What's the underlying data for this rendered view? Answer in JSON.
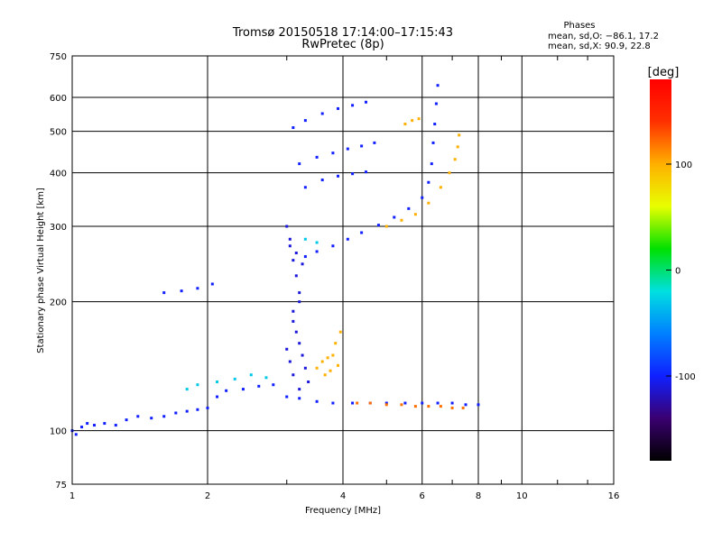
{
  "chart_data": {
    "type": "scatter",
    "title": "Tromsø 20150518 17:14:00–17:15:43",
    "subtitle": "RwPretec (8p)",
    "xlabel": "Frequency [MHz]",
    "ylabel": "Stationary phase Virtual Height [km]",
    "x_scale": "log",
    "y_scale": "log",
    "xlim": [
      1,
      16
    ],
    "ylim": [
      75,
      750
    ],
    "x_ticks": [
      1,
      2,
      4,
      6,
      8,
      10,
      16
    ],
    "y_ticks": [
      75,
      100,
      200,
      300,
      400,
      500,
      600,
      750
    ],
    "grid": true,
    "phase_info": {
      "title": "Phases",
      "line_o": "mean, sd,O: −86.1, 17.2",
      "line_x": "mean, sd,X:  90.9, 22.8"
    },
    "colorbar": {
      "label": "[deg]",
      "ticks": [
        100,
        0,
        -100
      ],
      "range": [
        -180,
        180
      ],
      "colors": [
        "#000000",
        "#3a0070",
        "#1020ff",
        "#0080ff",
        "#00e0e0",
        "#00e000",
        "#e8ff00",
        "#ffb000",
        "#ff3000",
        "#ff0000"
      ]
    },
    "series": [
      {
        "phase": -100,
        "points": [
          [
            1.0,
            100
          ],
          [
            1.02,
            98
          ],
          [
            1.05,
            102
          ],
          [
            1.08,
            104
          ],
          [
            1.12,
            103
          ],
          [
            1.18,
            104
          ],
          [
            1.25,
            103
          ],
          [
            1.32,
            106
          ],
          [
            1.4,
            108
          ],
          [
            1.5,
            107
          ],
          [
            1.6,
            108
          ],
          [
            1.7,
            110
          ],
          [
            1.8,
            111
          ],
          [
            1.9,
            112
          ],
          [
            2.0,
            113
          ],
          [
            2.1,
            120
          ],
          [
            2.2,
            124
          ],
          [
            2.4,
            125
          ],
          [
            2.6,
            127
          ],
          [
            2.8,
            128
          ],
          [
            3.0,
            120
          ],
          [
            3.2,
            119
          ],
          [
            3.5,
            117
          ],
          [
            3.8,
            116
          ],
          [
            4.2,
            116
          ],
          [
            4.6,
            116
          ],
          [
            5.0,
            116
          ],
          [
            5.5,
            116
          ],
          [
            6.0,
            116
          ],
          [
            6.5,
            116
          ],
          [
            7.0,
            116
          ],
          [
            7.5,
            115
          ],
          [
            8.0,
            115
          ]
        ]
      },
      {
        "phase": -110,
        "points": [
          [
            3.0,
            300
          ],
          [
            3.05,
            270
          ],
          [
            3.1,
            250
          ],
          [
            3.15,
            230
          ],
          [
            3.2,
            210
          ],
          [
            3.1,
            190
          ],
          [
            3.15,
            170
          ],
          [
            3.2,
            160
          ],
          [
            3.25,
            150
          ],
          [
            3.3,
            140
          ],
          [
            3.35,
            130
          ],
          [
            3.2,
            125
          ],
          [
            3.1,
            135
          ],
          [
            3.05,
            145
          ],
          [
            3.0,
            155
          ],
          [
            3.1,
            180
          ],
          [
            3.2,
            200
          ],
          [
            3.05,
            280
          ],
          [
            3.15,
            260
          ],
          [
            3.25,
            245
          ]
        ]
      },
      {
        "phase": -100,
        "points": [
          [
            3.3,
            255
          ],
          [
            3.5,
            262
          ],
          [
            3.8,
            270
          ],
          [
            4.1,
            280
          ],
          [
            4.4,
            290
          ],
          [
            4.8,
            302
          ],
          [
            5.2,
            315
          ],
          [
            5.6,
            330
          ],
          [
            6.0,
            350
          ],
          [
            6.2,
            380
          ],
          [
            6.3,
            420
          ],
          [
            6.35,
            470
          ],
          [
            6.4,
            520
          ],
          [
            6.45,
            580
          ],
          [
            6.5,
            640
          ]
        ]
      },
      {
        "phase": -100,
        "points": [
          [
            3.1,
            510
          ],
          [
            3.3,
            530
          ],
          [
            3.6,
            550
          ],
          [
            3.9,
            565
          ],
          [
            4.2,
            575
          ],
          [
            4.5,
            585
          ]
        ]
      },
      {
        "phase": -100,
        "points": [
          [
            3.2,
            420
          ],
          [
            3.5,
            435
          ],
          [
            3.8,
            445
          ],
          [
            4.1,
            455
          ],
          [
            4.4,
            462
          ],
          [
            4.7,
            470
          ]
        ]
      },
      {
        "phase": -100,
        "points": [
          [
            3.3,
            370
          ],
          [
            3.6,
            385
          ],
          [
            3.9,
            393
          ],
          [
            4.2,
            398
          ],
          [
            4.5,
            402
          ]
        ]
      },
      {
        "phase": -100,
        "points": [
          [
            1.6,
            210
          ],
          [
            1.75,
            212
          ],
          [
            1.9,
            215
          ],
          [
            2.05,
            220
          ]
        ]
      },
      {
        "phase": 100,
        "points": [
          [
            5.0,
            300
          ],
          [
            5.4,
            310
          ],
          [
            5.8,
            320
          ],
          [
            6.2,
            340
          ],
          [
            6.6,
            370
          ],
          [
            6.9,
            400
          ],
          [
            7.1,
            430
          ],
          [
            7.2,
            460
          ],
          [
            7.25,
            490
          ]
        ]
      },
      {
        "phase": 100,
        "points": [
          [
            3.5,
            140
          ],
          [
            3.6,
            145
          ],
          [
            3.7,
            148
          ],
          [
            3.8,
            150
          ],
          [
            3.9,
            142
          ],
          [
            3.75,
            138
          ],
          [
            3.65,
            135
          ],
          [
            3.85,
            160
          ],
          [
            3.95,
            170
          ]
        ]
      },
      {
        "phase": 120,
        "points": [
          [
            4.3,
            116
          ],
          [
            4.6,
            116
          ],
          [
            5.0,
            115
          ],
          [
            5.4,
            115
          ],
          [
            5.8,
            114
          ],
          [
            6.2,
            114
          ],
          [
            6.6,
            114
          ],
          [
            7.0,
            113
          ],
          [
            7.4,
            113
          ]
        ]
      },
      {
        "phase": 100,
        "points": [
          [
            5.5,
            520
          ],
          [
            5.7,
            530
          ],
          [
            5.9,
            535
          ]
        ]
      },
      {
        "phase": -30,
        "points": [
          [
            2.1,
            130
          ],
          [
            2.3,
            132
          ],
          [
            2.5,
            135
          ],
          [
            2.7,
            133
          ],
          [
            1.9,
            128
          ],
          [
            1.8,
            125
          ],
          [
            3.3,
            280
          ],
          [
            3.5,
            275
          ]
        ]
      }
    ]
  }
}
